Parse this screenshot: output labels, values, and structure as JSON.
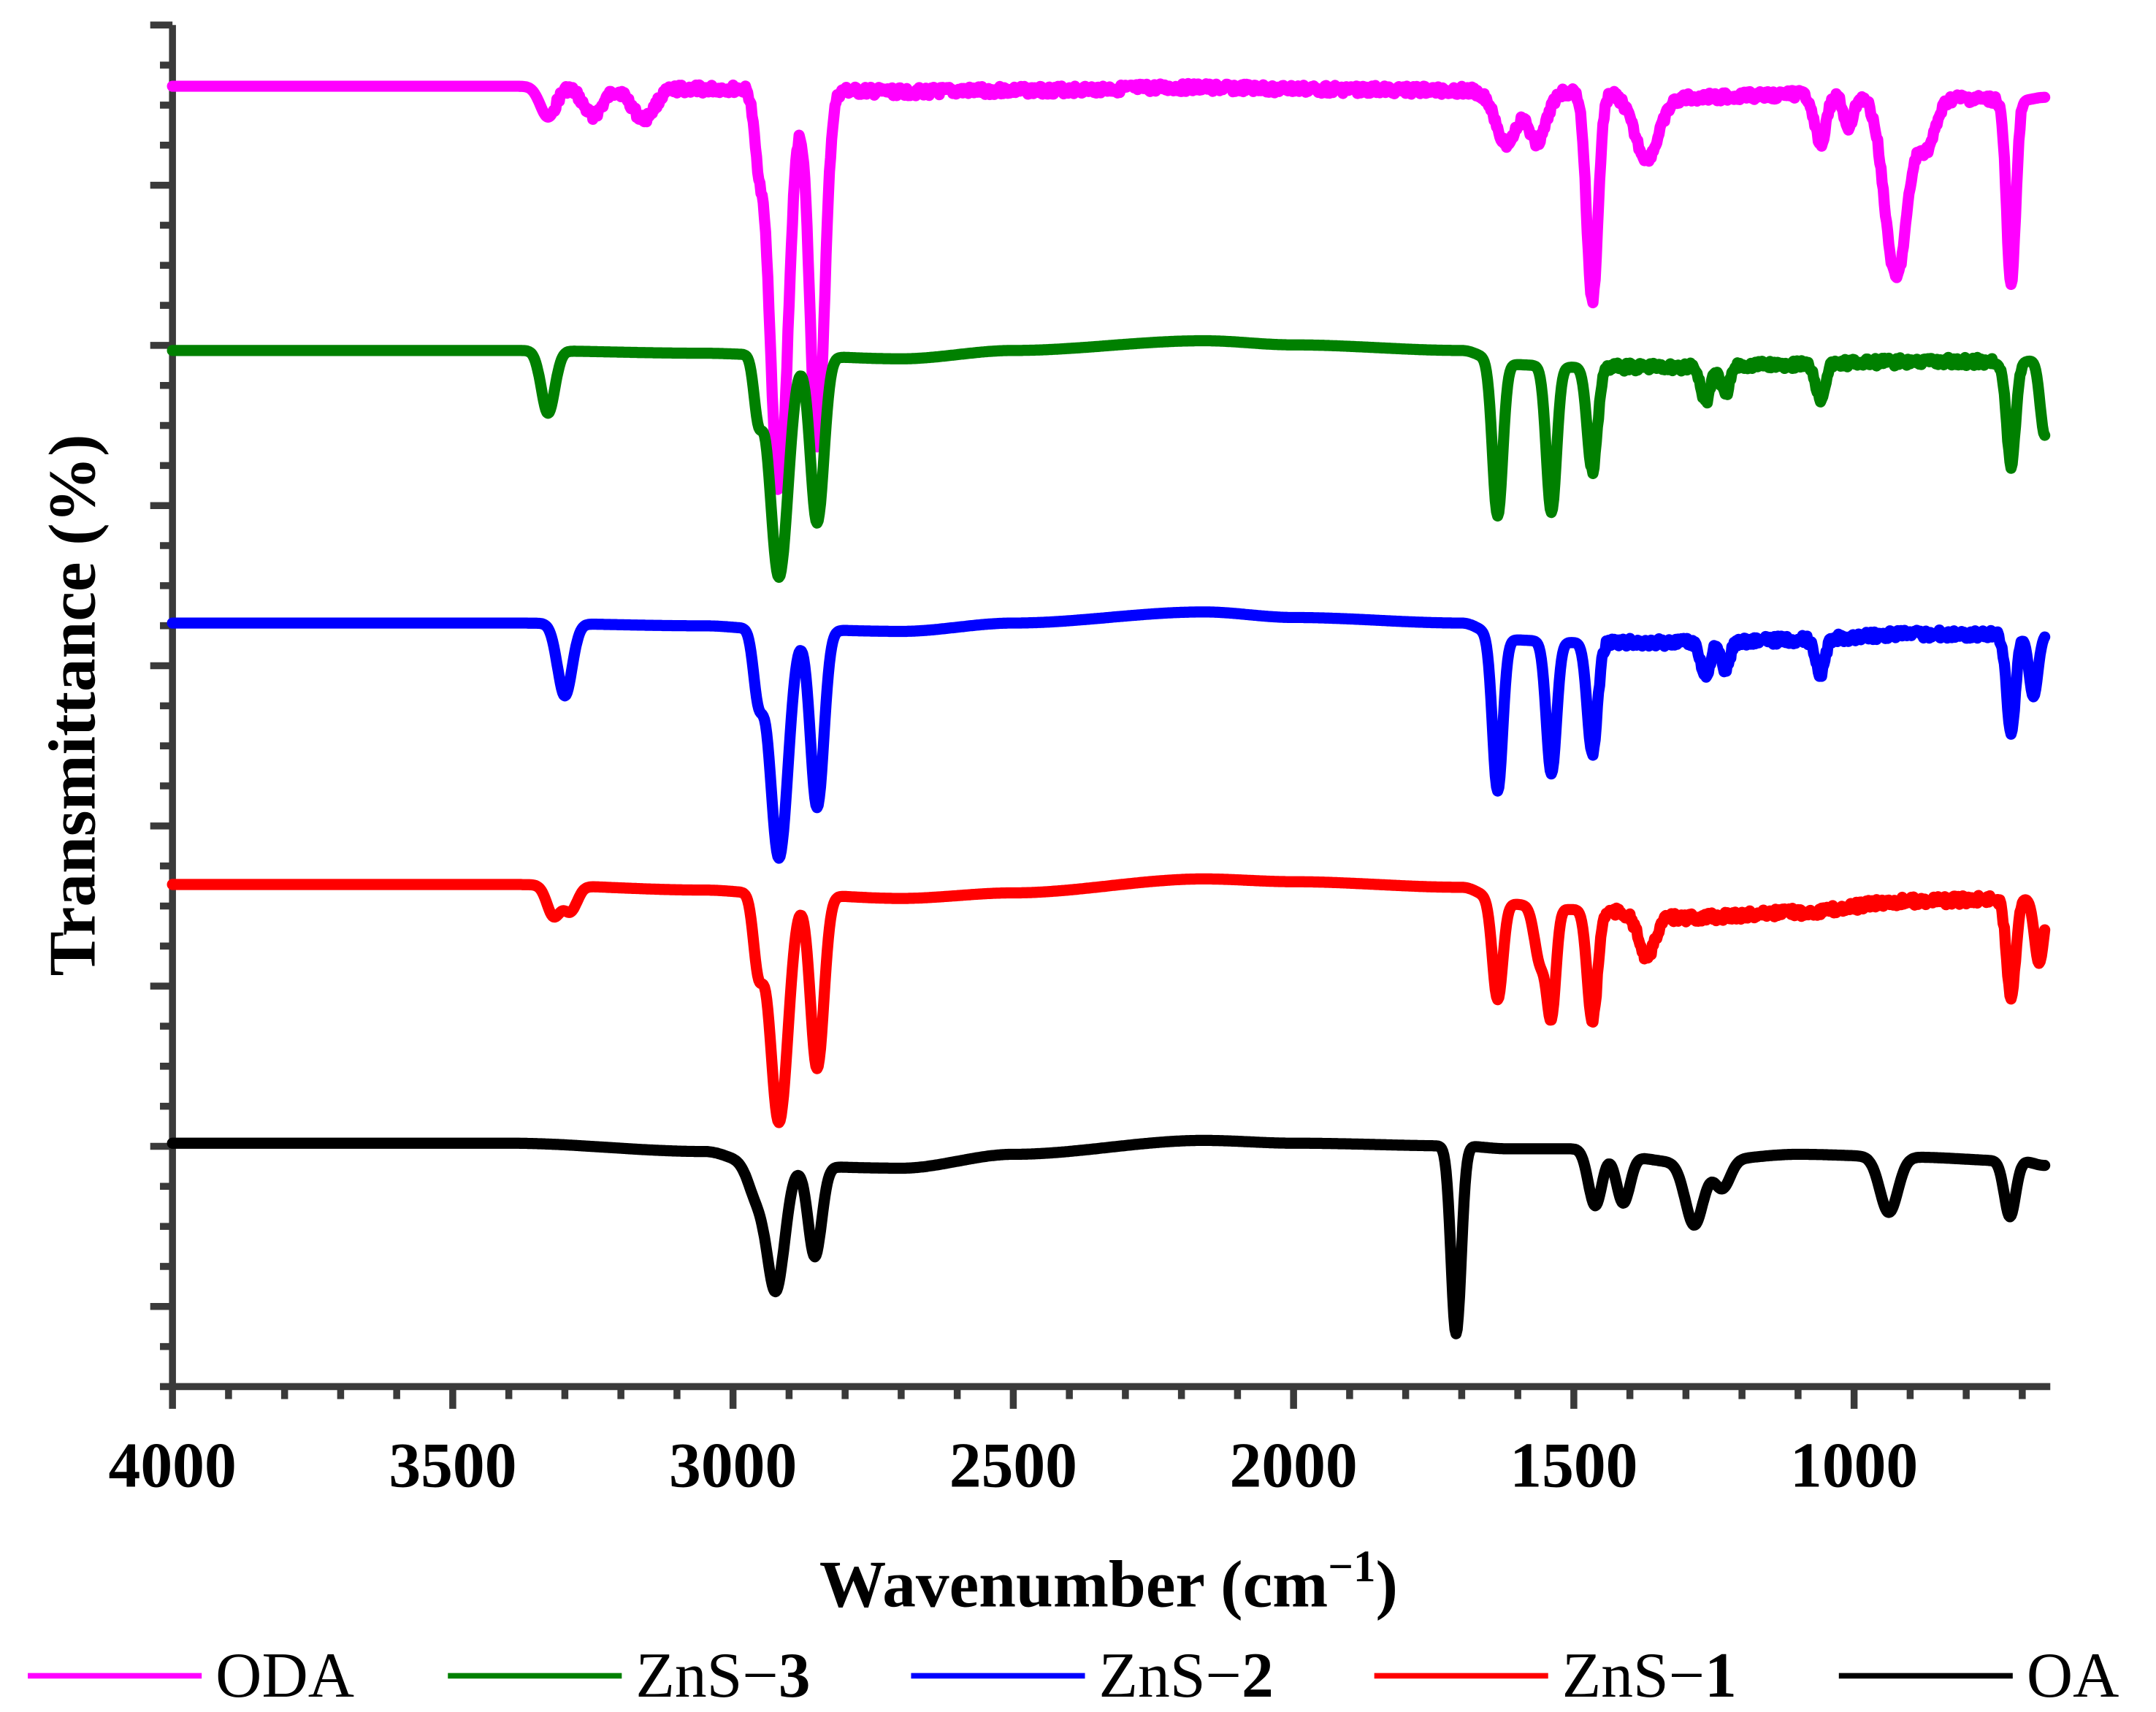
{
  "chart_data": {
    "type": "line",
    "title": "",
    "xlabel": "Wavenumber (cm",
    "xlabel_sup": "−1",
    "xlabel_close": ")",
    "ylabel": "Transmittance (%)",
    "xlim": [
      4000,
      650
    ],
    "x_reversed": true,
    "x_ticks": [
      4000,
      3500,
      3000,
      2500,
      2000,
      1500,
      1000
    ],
    "y_tick_labels": false,
    "grid": false,
    "legend_position": "bottom",
    "baseline_x": [
      4000,
      3400,
      3050,
      2950,
      2700,
      2500,
      2160,
      2000,
      1700,
      1620,
      1500,
      1300,
      1100,
      900,
      700,
      660
    ],
    "series": [
      {
        "name": "ODA",
        "label_prefix": "ODA",
        "label_bold": "",
        "color": "#ff00ff",
        "baseline": [
          62,
          62,
          64,
          64,
          66,
          65,
          63,
          64,
          65,
          68,
          66,
          70,
          68,
          70,
          72,
          70
        ],
        "noise_after": 3320,
        "peaks": [
          {
            "x": 3330,
            "depth": 22,
            "width": 14
          },
          {
            "x": 3250,
            "depth": 20,
            "width": 18
          },
          {
            "x": 3160,
            "depth": 22,
            "width": 20
          },
          {
            "x": 2955,
            "depth": 40,
            "width": 8
          },
          {
            "x": 2918,
            "depth": 290,
            "width": 16
          },
          {
            "x": 2850,
            "depth": 255,
            "width": 13
          },
          {
            "x": 1620,
            "depth": 35,
            "width": 18
          },
          {
            "x": 1565,
            "depth": 35,
            "width": 16
          },
          {
            "x": 1467,
            "depth": 150,
            "width": 10
          },
          {
            "x": 1370,
            "depth": 45,
            "width": 22
          },
          {
            "x": 1060,
            "depth": 35,
            "width": 10
          },
          {
            "x": 1010,
            "depth": 25,
            "width": 8
          },
          {
            "x": 925,
            "depth": 130,
            "width": 20
          },
          {
            "x": 870,
            "depth": 35,
            "width": 16
          },
          {
            "x": 720,
            "depth": 135,
            "width": 8
          }
        ]
      },
      {
        "name": "ZnS−3",
        "label_prefix": "ZnS−",
        "label_bold": "3",
        "color": "#008000",
        "baseline": [
          252,
          252,
          254,
          255,
          258,
          252,
          245,
          248,
          252,
          262,
          264,
          264,
          262,
          260,
          260,
          258
        ],
        "noise_after": 1470,
        "peaks": [
          {
            "x": 3330,
            "depth": 45,
            "width": 12
          },
          {
            "x": 2955,
            "depth": 40,
            "width": 8
          },
          {
            "x": 2918,
            "depth": 160,
            "width": 16
          },
          {
            "x": 2850,
            "depth": 120,
            "width": 12
          },
          {
            "x": 1636,
            "depth": 110,
            "width": 9
          },
          {
            "x": 1540,
            "depth": 105,
            "width": 9
          },
          {
            "x": 1467,
            "depth": 75,
            "width": 9
          },
          {
            "x": 1265,
            "depth": 25,
            "width": 8
          },
          {
            "x": 1230,
            "depth": 20,
            "width": 8
          },
          {
            "x": 1060,
            "depth": 25,
            "width": 8
          },
          {
            "x": 720,
            "depth": 75,
            "width": 8
          },
          {
            "x": 660,
            "depth": 55,
            "width": 8
          }
        ]
      },
      {
        "name": "ZnS−2",
        "label_prefix": "ZnS−",
        "label_bold": "2",
        "color": "#0000ff",
        "baseline": [
          448,
          448,
          450,
          452,
          454,
          448,
          440,
          444,
          448,
          460,
          462,
          462,
          460,
          456,
          456,
          456
        ],
        "noise_after": 1470,
        "peaks": [
          {
            "x": 3300,
            "depth": 52,
            "width": 13
          },
          {
            "x": 2955,
            "depth": 45,
            "width": 9
          },
          {
            "x": 2918,
            "depth": 165,
            "width": 16
          },
          {
            "x": 2850,
            "depth": 128,
            "width": 12
          },
          {
            "x": 1636,
            "depth": 110,
            "width": 9
          },
          {
            "x": 1540,
            "depth": 95,
            "width": 9
          },
          {
            "x": 1467,
            "depth": 80,
            "width": 9
          },
          {
            "x": 1265,
            "depth": 25,
            "width": 8
          },
          {
            "x": 1230,
            "depth": 20,
            "width": 8
          },
          {
            "x": 1060,
            "depth": 25,
            "width": 8
          },
          {
            "x": 720,
            "depth": 70,
            "width": 8
          },
          {
            "x": 680,
            "depth": 45,
            "width": 8
          }
        ]
      },
      {
        "name": "ZnS−1",
        "label_prefix": "ZnS−",
        "label_bold": "1",
        "color": "#ff0000",
        "baseline": [
          636,
          636,
          640,
          642,
          646,
          642,
          632,
          634,
          638,
          650,
          654,
          660,
          656,
          648,
          646,
          648
        ],
        "noise_after": 1470,
        "peaks": [
          {
            "x": 3320,
            "depth": 22,
            "width": 12
          },
          {
            "x": 3290,
            "depth": 18,
            "width": 12
          },
          {
            "x": 2955,
            "depth": 50,
            "width": 9
          },
          {
            "x": 2918,
            "depth": 165,
            "width": 16
          },
          {
            "x": 2850,
            "depth": 125,
            "width": 12
          },
          {
            "x": 1636,
            "depth": 70,
            "width": 9
          },
          {
            "x": 1560,
            "depth": 40,
            "width": 10
          },
          {
            "x": 1540,
            "depth": 75,
            "width": 8
          },
          {
            "x": 1467,
            "depth": 80,
            "width": 9
          },
          {
            "x": 1370,
            "depth": 30,
            "width": 14
          },
          {
            "x": 720,
            "depth": 70,
            "width": 8
          },
          {
            "x": 670,
            "depth": 45,
            "width": 8
          }
        ]
      },
      {
        "name": "OA",
        "label_prefix": "OA",
        "label_bold": "",
        "color": "#000000",
        "baseline": [
          822,
          822,
          828,
          838,
          840,
          830,
          820,
          822,
          824,
          826,
          826,
          836,
          830,
          832,
          835,
          838
        ],
        "noise_after": 0,
        "peaks": [
          {
            "x": 2960,
            "depth": 20,
            "width": 14
          },
          {
            "x": 2924,
            "depth": 90,
            "width": 16
          },
          {
            "x": 2854,
            "depth": 65,
            "width": 12
          },
          {
            "x": 1710,
            "depth": 135,
            "width": 9
          },
          {
            "x": 1462,
            "depth": 40,
            "width": 12
          },
          {
            "x": 1412,
            "depth": 35,
            "width": 12
          },
          {
            "x": 1285,
            "depth": 45,
            "width": 16
          },
          {
            "x": 1235,
            "depth": 20,
            "width": 14
          },
          {
            "x": 938,
            "depth": 40,
            "width": 16
          },
          {
            "x": 722,
            "depth": 40,
            "width": 10
          }
        ]
      }
    ]
  }
}
